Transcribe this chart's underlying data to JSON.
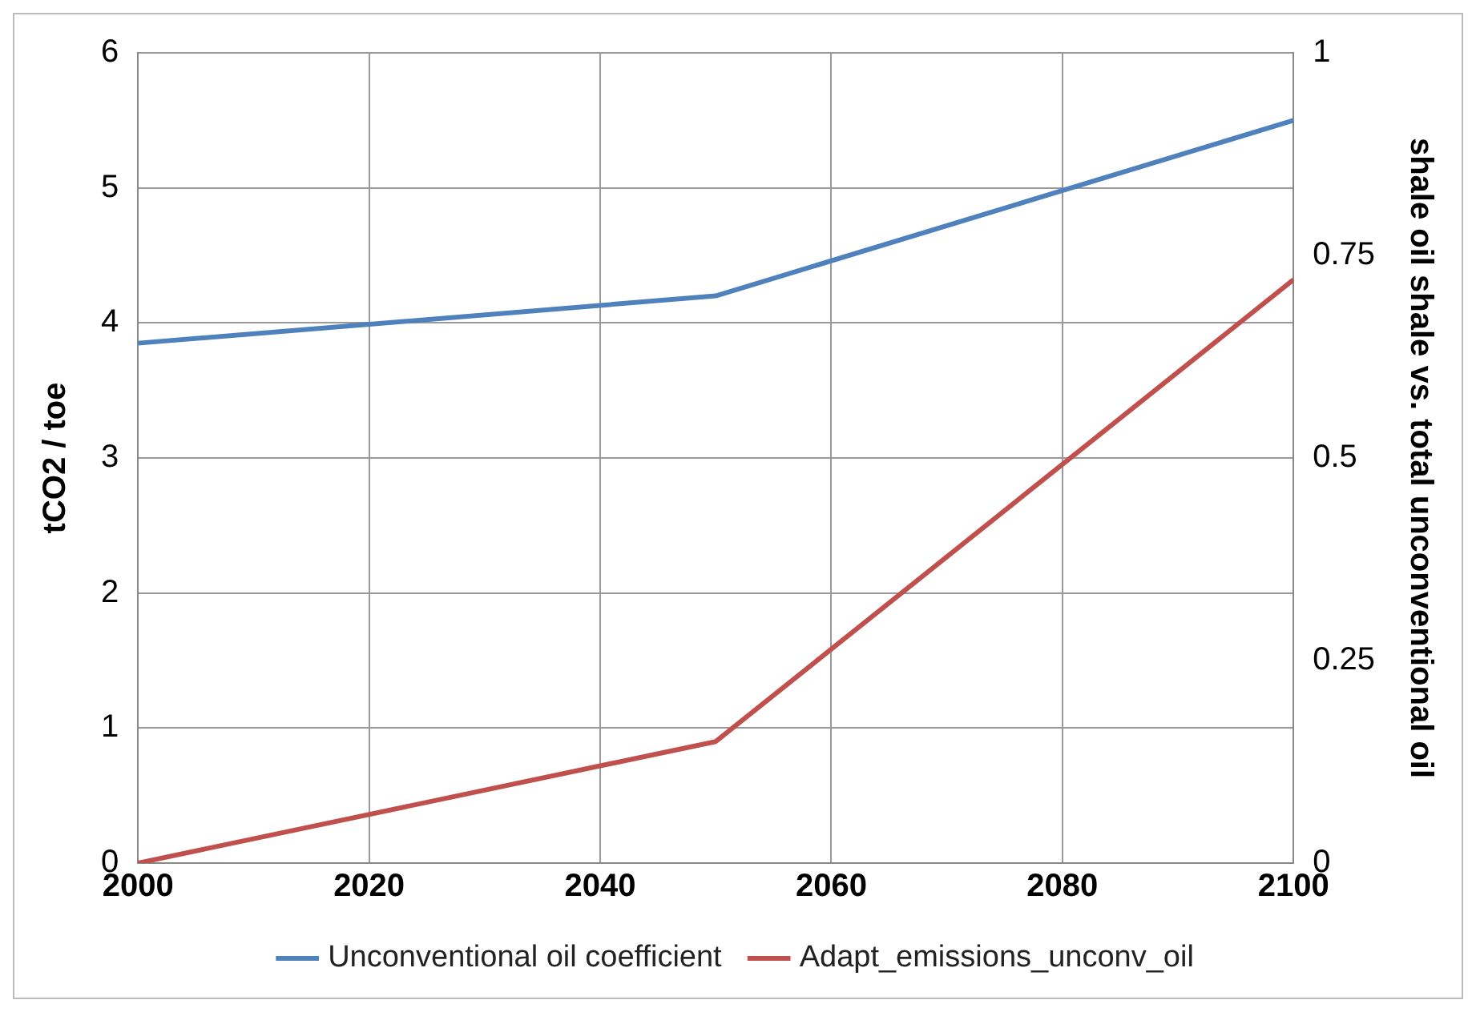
{
  "chart_data": {
    "type": "line",
    "xlabel": null,
    "ylabel": "tCO2 / toe",
    "y2label": "shale oil shale vs. total unconventional oil",
    "x": [
      2000,
      2050,
      2100
    ],
    "series": [
      {
        "name": "Unconventional oil coefficient",
        "color": "#4f81bd",
        "values": [
          3.85,
          4.2,
          5.5
        ]
      },
      {
        "name": "Adapt_emissions_unconv_oil",
        "color": "#c0504d",
        "values": [
          0,
          0.15,
          0.72
        ],
        "axis": "y2"
      }
    ],
    "xlim": [
      2000,
      2100
    ],
    "xticks": [
      2000,
      2020,
      2040,
      2060,
      2080,
      2100
    ],
    "ylim": [
      0,
      6
    ],
    "yticks": [
      0,
      1,
      2,
      3,
      4,
      5,
      6
    ],
    "y2lim": [
      0,
      1
    ],
    "y2ticks": [
      0,
      0.25,
      0.5,
      0.75,
      1
    ],
    "grid": true,
    "legend": "bottom",
    "marker": "none",
    "line_style": "solid"
  }
}
